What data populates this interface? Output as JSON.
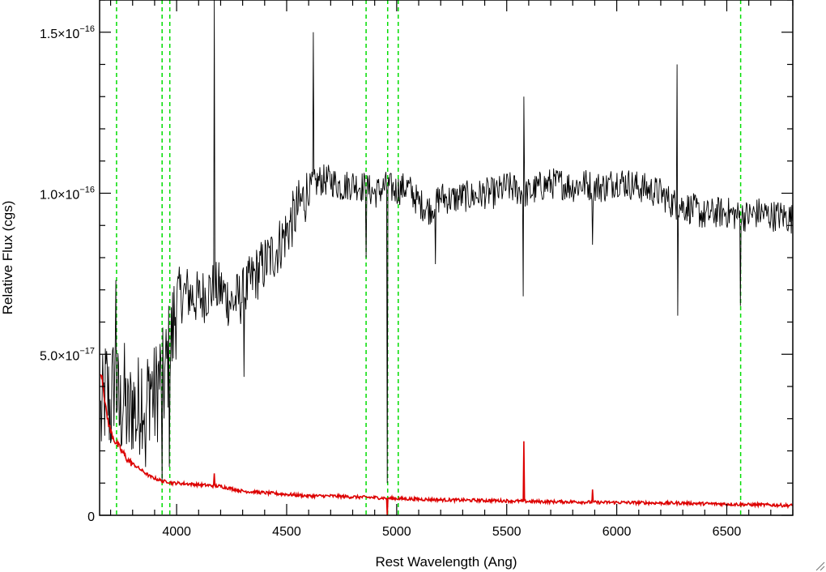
{
  "chart_data": {
    "type": "line",
    "xlabel": "Rest Wavelength (Ang)",
    "ylabel": "Relative Flux (cgs)",
    "xlim": [
      3650,
      6800
    ],
    "ylim": [
      0,
      1.6e-16
    ],
    "grid": false,
    "x_ticks": [
      {
        "value": 4000,
        "label": "4000"
      },
      {
        "value": 4500,
        "label": "4500"
      },
      {
        "value": 5000,
        "label": "5000"
      },
      {
        "value": 5500,
        "label": "5500"
      },
      {
        "value": 6000,
        "label": "6000"
      },
      {
        "value": 6500,
        "label": "6500"
      }
    ],
    "y_ticks": [
      {
        "value": 0,
        "mantissa": "0",
        "exponent": ""
      },
      {
        "value": 5e-17,
        "mantissa": "5.0×10",
        "exponent": "−17"
      },
      {
        "value": 1e-16,
        "mantissa": "1.0×10",
        "exponent": "−16"
      },
      {
        "value": 1.5e-16,
        "mantissa": "1.5×10",
        "exponent": "−16"
      }
    ],
    "vertical_markers": [
      3727,
      3934,
      3969,
      4861,
      4959,
      5007,
      6563
    ],
    "series": [
      {
        "color": "#000000",
        "x": [
          3660,
          3680,
          3700,
          3720,
          3740,
          3760,
          3780,
          3800,
          3820,
          3840,
          3860,
          3880,
          3900,
          3920,
          3940,
          3960,
          3980,
          4000,
          4050,
          4100,
          4150,
          4200,
          4250,
          4300,
          4350,
          4400,
          4450,
          4500,
          4550,
          4600,
          4650,
          4700,
          4750,
          4800,
          4850,
          4900,
          4950,
          5000,
          5050,
          5100,
          5150,
          5200,
          5250,
          5300,
          5350,
          5400,
          5450,
          5500,
          5550,
          5600,
          5650,
          5700,
          5750,
          5800,
          5850,
          5900,
          5950,
          6000,
          6050,
          6100,
          6150,
          6200,
          6250,
          6300,
          6350,
          6400,
          6450,
          6500,
          6550,
          6600,
          6650,
          6700,
          6750,
          6800
        ],
        "y": [
          3e-17,
          4e-17,
          3.2e-17,
          4.5e-17,
          3e-17,
          3.8e-17,
          2.8e-17,
          3.6e-17,
          3e-17,
          4e-17,
          3.2e-17,
          4.2e-17,
          3.5e-17,
          4.3e-17,
          4e-17,
          4.8e-17,
          5.5e-17,
          6.8e-17,
          6.9e-17,
          6.7e-17,
          7e-17,
          7e-17,
          6.6e-17,
          6.8e-17,
          7.4e-17,
          7.8e-17,
          8.2e-17,
          8.8e-17,
          9.5e-17,
          1.01e-16,
          1.04e-16,
          1.04e-16,
          1.02e-16,
          1.03e-16,
          1.02e-16,
          1e-16,
          1.02e-16,
          1.01e-16,
          1.02e-16,
          9.7e-17,
          9.5e-17,
          9.9e-17,
          9.8e-17,
          9.9e-17,
          9.9e-17,
          1e-16,
          1e-16,
          1.02e-16,
          1.01e-16,
          1e-16,
          1.02e-16,
          1.03e-16,
          1.03e-16,
          1.02e-16,
          1.03e-16,
          1.02e-16,
          1.02e-16,
          1.04e-16,
          1.03e-16,
          1.02e-16,
          1.01e-16,
          1e-16,
          9.7e-17,
          9.6e-17,
          9.5e-17,
          9.3e-17,
          9.4e-17,
          9.4e-17,
          9.3e-17,
          9.3e-17,
          9.4e-17,
          9.3e-17,
          9.3e-17,
          9.2e-17
        ],
        "features": [
          {
            "x": 3725,
            "y": 7.3e-17
          },
          {
            "x": 3860,
            "y": 1.5e-17
          },
          {
            "x": 3933,
            "y": 1e-17
          },
          {
            "x": 3968,
            "y": 1.5e-17
          },
          {
            "x": 4170,
            "y": 1.62e-16
          },
          {
            "x": 4305,
            "y": 4.3e-17
          },
          {
            "x": 4620,
            "y": 1.5e-16
          },
          {
            "x": 4860,
            "y": 8e-17
          },
          {
            "x": 4958,
            "y": 1e-17
          },
          {
            "x": 5175,
            "y": 7.8e-17
          },
          {
            "x": 5575,
            "y": 6.8e-17
          },
          {
            "x": 5578,
            "y": 1.3e-16
          },
          {
            "x": 5890,
            "y": 8.4e-17
          },
          {
            "x": 6275,
            "y": 1.4e-16
          },
          {
            "x": 6278,
            "y": 6.2e-17
          },
          {
            "x": 6562,
            "y": 6.5e-17
          }
        ]
      },
      {
        "color": "#dd0000",
        "x": [
          3660,
          3680,
          3700,
          3720,
          3740,
          3760,
          3780,
          3800,
          3820,
          3840,
          3860,
          3880,
          3900,
          3920,
          3940,
          3960,
          3980,
          4000,
          4100,
          4200,
          4300,
          4400,
          4500,
          4600,
          4700,
          4800,
          4900,
          5000,
          5100,
          5200,
          5300,
          5400,
          5500,
          5600,
          5700,
          5800,
          5900,
          6000,
          6100,
          6200,
          6300,
          6400,
          6500,
          6600,
          6700,
          6800
        ],
        "y": [
          4.4e-17,
          3.2e-17,
          2.6e-17,
          2.3e-17,
          2.1e-17,
          1.9e-17,
          1.7e-17,
          1.6e-17,
          1.5e-17,
          1.4e-17,
          1.3e-17,
          1.2e-17,
          1.15e-17,
          1.1e-17,
          1.05e-17,
          1.05e-17,
          1e-17,
          1e-17,
          9.5e-18,
          9e-18,
          7.5e-18,
          7e-18,
          6.5e-18,
          6e-18,
          6e-18,
          5.7e-18,
          5.5e-18,
          5.2e-18,
          5e-18,
          4.8e-18,
          4.7e-18,
          4.6e-18,
          4.5e-18,
          4.3e-18,
          4.2e-18,
          4.2e-18,
          4e-18,
          4e-18,
          3.9e-18,
          3.8e-18,
          3.8e-18,
          3.6e-18,
          3.5e-18,
          3.3e-18,
          3.2e-18,
          3e-18
        ],
        "features": [
          {
            "x": 4170,
            "y": 1.3e-17
          },
          {
            "x": 4958,
            "y": -2e-18
          },
          {
            "x": 5577,
            "y": 2.3e-17
          },
          {
            "x": 5890,
            "y": 8e-18
          }
        ]
      }
    ]
  }
}
